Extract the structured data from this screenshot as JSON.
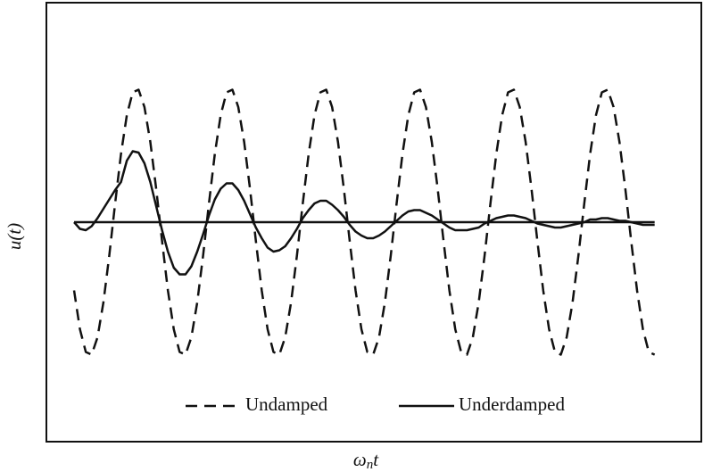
{
  "chart_data": {
    "type": "line",
    "x_label": [
      "ω",
      "n",
      "t"
    ],
    "y_label": "u(t)",
    "xlim": [
      -0.59,
      13.37
    ],
    "ylim": [
      -1.64,
      1.64
    ],
    "x": [
      0,
      0.125,
      0.25,
      0.375,
      0.5,
      0.625,
      0.75,
      0.875,
      1,
      1.125,
      1.25,
      1.375,
      1.5,
      1.625,
      1.75,
      1.875,
      2,
      2.125,
      2.25,
      2.375,
      2.5,
      2.625,
      2.75,
      2.875,
      3,
      3.125,
      3.25,
      3.375,
      3.5,
      3.625,
      3.75,
      3.875,
      4,
      4.125,
      4.25,
      4.375,
      4.5,
      4.625,
      4.75,
      4.875,
      5,
      5.125,
      5.25,
      5.375,
      5.5,
      5.625,
      5.75,
      5.875,
      6,
      6.125,
      6.25,
      6.375,
      6.5,
      6.625,
      6.75,
      6.875,
      7,
      7.125,
      7.25,
      7.375,
      7.5,
      7.625,
      7.75,
      7.875,
      8,
      8.125,
      8.25,
      8.375,
      8.5,
      8.625,
      8.75,
      8.875,
      9,
      9.125,
      9.25,
      9.375,
      9.5,
      9.625,
      9.75,
      9.875,
      10,
      10.125,
      10.25,
      10.375,
      10.5,
      10.625,
      10.75,
      10.875,
      11,
      11.125,
      11.25,
      11.375,
      11.5,
      11.625,
      11.75,
      11.875,
      12,
      12.125,
      12.25,
      12.375
    ],
    "series": [
      {
        "name": "Undamped",
        "color": "#111111",
        "linestyle": "dashed",
        "values": [
          -0.51,
          -0.8,
          -0.97,
          -0.99,
          -0.86,
          -0.6,
          -0.25,
          0.14,
          0.51,
          0.8,
          0.97,
          0.99,
          0.86,
          0.6,
          0.25,
          -0.14,
          -0.51,
          -0.8,
          -0.97,
          -0.99,
          -0.86,
          -0.6,
          -0.25,
          0.14,
          0.51,
          0.8,
          0.97,
          0.99,
          0.86,
          0.6,
          0.25,
          -0.14,
          -0.51,
          -0.8,
          -0.97,
          -0.99,
          -0.86,
          -0.6,
          -0.25,
          0.14,
          0.51,
          0.8,
          0.97,
          0.99,
          0.86,
          0.6,
          0.25,
          -0.14,
          -0.51,
          -0.8,
          -0.97,
          -0.99,
          -0.86,
          -0.6,
          -0.25,
          0.14,
          0.51,
          0.8,
          0.97,
          0.99,
          0.86,
          0.6,
          0.25,
          -0.14,
          -0.51,
          -0.8,
          -0.97,
          -0.99,
          -0.86,
          -0.6,
          -0.25,
          0.14,
          0.51,
          0.8,
          0.97,
          0.99,
          0.86,
          0.6,
          0.25,
          -0.14,
          -0.51,
          -0.8,
          -0.97,
          -0.99,
          -0.86,
          -0.6,
          -0.25,
          0.14,
          0.51,
          0.8,
          0.97,
          0.99,
          0.86,
          0.6,
          0.25,
          -0.14,
          -0.51,
          -0.8,
          -0.97,
          -0.99
        ]
      },
      {
        "name": "Underdamped",
        "color": "#111111",
        "linestyle": "solid",
        "values": [
          0,
          -0.05,
          -0.06,
          -0.03,
          0.03,
          0.1,
          0.17,
          0.24,
          0.3,
          0.46,
          0.53,
          0.52,
          0.44,
          0.3,
          0.12,
          -0.06,
          -0.22,
          -0.34,
          -0.39,
          -0.39,
          -0.33,
          -0.22,
          -0.09,
          0.05,
          0.17,
          0.25,
          0.29,
          0.29,
          0.24,
          0.16,
          0.06,
          -0.04,
          -0.12,
          -0.19,
          -0.22,
          -0.21,
          -0.18,
          -0.12,
          -0.05,
          0.03,
          0.09,
          0.14,
          0.16,
          0.16,
          0.13,
          0.09,
          0.04,
          -0.02,
          -0.07,
          -0.1,
          -0.12,
          -0.12,
          -0.1,
          -0.07,
          -0.03,
          0.01,
          0.05,
          0.08,
          0.09,
          0.09,
          0.07,
          0.05,
          0.02,
          -0.01,
          -0.04,
          -0.06,
          -0.06,
          -0.06,
          -0.05,
          -0.04,
          -0.01,
          0.01,
          0.03,
          0.04,
          0.05,
          0.05,
          0.04,
          0.03,
          0.01,
          -0.01,
          -0.02,
          -0.03,
          -0.04,
          -0.04,
          -0.03,
          -0.02,
          -0.01,
          0,
          0.02,
          0.02,
          0.03,
          0.03,
          0.02,
          0.01,
          0.01,
          0,
          -0.01,
          -0.02,
          -0.02,
          -0.02
        ]
      }
    ]
  }
}
